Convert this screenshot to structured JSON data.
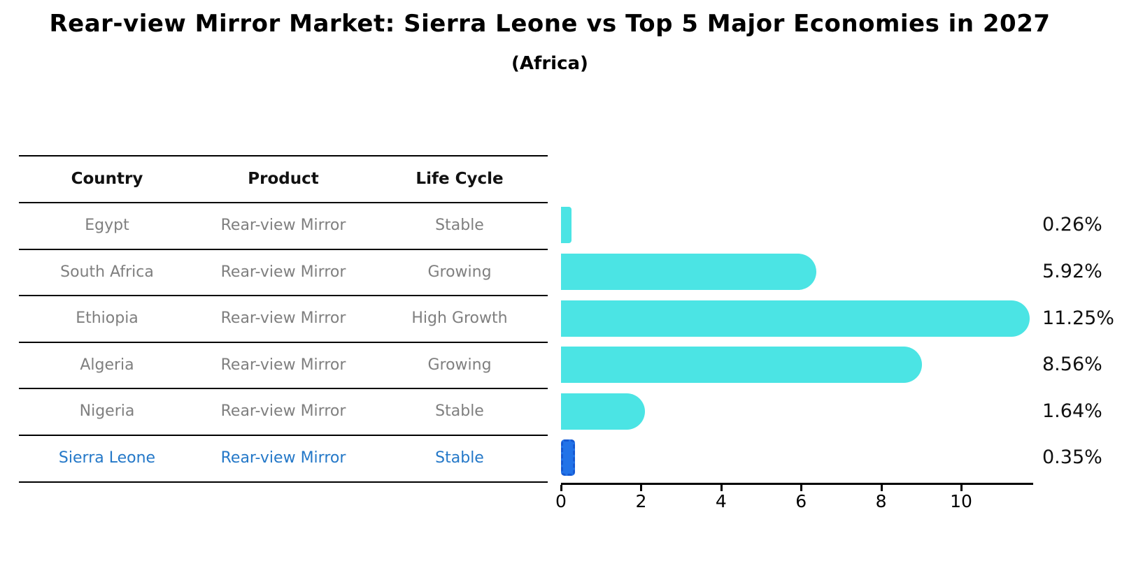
{
  "title": "Rear-view Mirror Market: Sierra Leone vs Top 5 Major Economies in 2027",
  "subtitle": "(Africa)",
  "table": {
    "columns": [
      "Country",
      "Product",
      "Life Cycle"
    ],
    "rows": [
      {
        "country": "Egypt",
        "product": "Rear-view Mirror",
        "life_cycle": "Stable",
        "highlight": false
      },
      {
        "country": "South Africa",
        "product": "Rear-view Mirror",
        "life_cycle": "Growing",
        "highlight": false
      },
      {
        "country": "Ethiopia",
        "product": "Rear-view Mirror",
        "life_cycle": "High Growth",
        "highlight": false
      },
      {
        "country": "Algeria",
        "product": "Rear-view Mirror",
        "life_cycle": "Growing",
        "highlight": false
      },
      {
        "country": "Nigeria",
        "product": "Rear-view Mirror",
        "life_cycle": "Stable",
        "highlight": false
      },
      {
        "country": "Sierra Leone",
        "product": "Rear-view Mirror",
        "life_cycle": "Stable",
        "highlight": true
      }
    ]
  },
  "chart_data": {
    "type": "bar",
    "orientation": "horizontal",
    "title": "Rear-view Mirror Market: Sierra Leone vs Top 5 Major Economies in 2027",
    "subtitle": "(Africa)",
    "categories": [
      "Egypt",
      "South Africa",
      "Ethiopia",
      "Algeria",
      "Nigeria",
      "Sierra Leone"
    ],
    "values": [
      0.26,
      5.92,
      11.25,
      8.56,
      1.64,
      0.35
    ],
    "value_labels": [
      "0.26%",
      "5.92%",
      "11.25%",
      "8.56%",
      "1.64%",
      "0.35%"
    ],
    "highlight_index": 5,
    "x_ticks": [
      0,
      2,
      4,
      6,
      8,
      10
    ],
    "xlim": [
      0,
      11.8
    ],
    "grid": false,
    "legend": "none",
    "colors": {
      "bar_default": "#4be4e4",
      "bar_highlight": "#2273e8",
      "bar_highlight_border": "#1659d2",
      "table_text": "#7f7f7f",
      "table_text_highlight": "#2478c8",
      "axis": "#000000"
    }
  }
}
